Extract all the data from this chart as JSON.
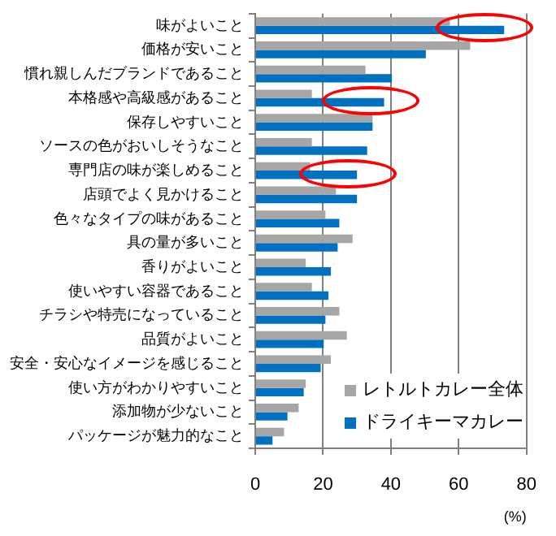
{
  "chart_data": {
    "type": "bar",
    "orientation": "horizontal",
    "categories": [
      "味がよいこと",
      "価格が安いこと",
      "慣れ親しんだブランドであること",
      "本格感や高級感があること",
      "保存しやすいこと",
      "ソースの色がおいしそうなこと",
      "専門店の味が楽しめること",
      "店頭でよく見かけること",
      "色々なタイプの味があること",
      "具の量が多いこと",
      "香りがよいこと",
      "使いやすい容器であること",
      "チラシや特売になっていること",
      "品質がよいこと",
      "安全・安心なイメージを感じること",
      "使い方がわかりやすいこと",
      "添加物が少ないこと",
      "パッケージが魅力的なこと"
    ],
    "series": [
      {
        "name": "レトルトカレー全体",
        "color": "#a6a6a6",
        "values": [
          57.4,
          63.4,
          32.5,
          16.7,
          34.6,
          16.7,
          16.2,
          23.8,
          20.7,
          28.7,
          14.9,
          16.7,
          24.8,
          27.0,
          22.3,
          14.9,
          12.8,
          8.5
        ]
      },
      {
        "name": "ドライキーマカレー",
        "color": "#0070c0",
        "values": [
          73.4,
          50.3,
          40.3,
          38.0,
          34.6,
          33.0,
          30.0,
          30.0,
          24.8,
          24.3,
          22.3,
          21.6,
          20.7,
          20.2,
          19.3,
          14.3,
          9.5,
          5.1
        ]
      }
    ],
    "xlabel": "(%)",
    "xlim": [
      0,
      80
    ],
    "xticks": [
      0,
      20,
      40,
      60,
      80
    ],
    "grid": "x",
    "legend": "bottom right"
  }
}
